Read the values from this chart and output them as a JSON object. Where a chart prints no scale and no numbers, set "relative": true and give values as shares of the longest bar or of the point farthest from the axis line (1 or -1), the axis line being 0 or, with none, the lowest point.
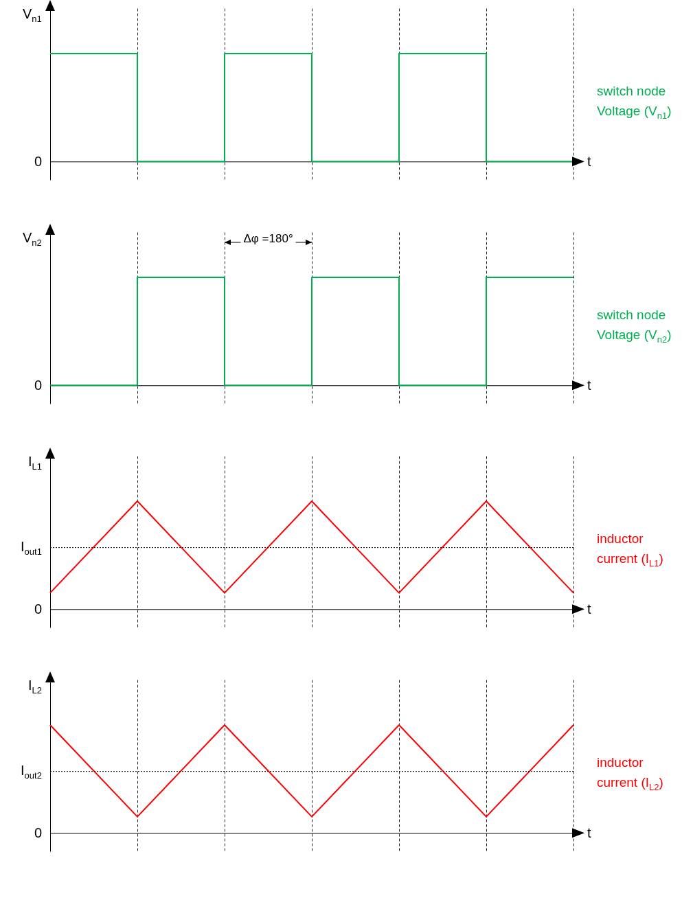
{
  "chart_data": [
    {
      "type": "step",
      "relative": true,
      "grid": "x",
      "ylabel": "V$_{n1}$",
      "xlabel": "t",
      "annotations": [
        "0"
      ],
      "categories": [
        null,
        null,
        null,
        null,
        null,
        null,
        null
      ],
      "series": [
        {
          "name": "switch node Voltage (V$_{n1}$)",
          "color": "#00b050",
          "values": [
            1,
            0,
            1,
            0,
            1,
            0,
            0
          ]
        }
      ]
    },
    {
      "type": "step",
      "relative": true,
      "grid": "x",
      "ylabel": "V$_{n2}$",
      "xlabel": "t",
      "annotations": [
        "0",
        "Δφ =180°"
      ],
      "categories": [
        null,
        null,
        null,
        null,
        null,
        null,
        null
      ],
      "series": [
        {
          "name": "switch node Voltage (V$_{n2}$)",
          "color": "#00b050",
          "values": [
            0,
            1,
            0,
            1,
            0,
            1,
            1
          ]
        }
      ]
    },
    {
      "type": "line",
      "relative": true,
      "grid": "x",
      "ylabel": "I$_{L1}$",
      "xlabel": "t",
      "annotations": [
        "0"
      ],
      "categories": [
        null,
        null,
        null,
        null,
        null,
        null,
        null
      ],
      "series": [
        {
          "name": "inductor current (I$_{L1}$)",
          "color": "#ff0000",
          "values": [
            0.15,
            1,
            0.15,
            1,
            0.15,
            1,
            0.15
          ]
        }
      ],
      "ref_lines": [
        {
          "axis": "y",
          "value": 0.57,
          "label": "I$_{out1}$",
          "line_style": "dotted"
        }
      ]
    },
    {
      "type": "line",
      "relative": true,
      "grid": "x",
      "ylabel": "I$_{L2}$",
      "xlabel": "t",
      "annotations": [
        "0"
      ],
      "categories": [
        null,
        null,
        null,
        null,
        null,
        null,
        null
      ],
      "series": [
        {
          "name": "inductor current (I$_{L2}$)",
          "color": "#ff0000",
          "values": [
            1,
            0.15,
            1,
            0.15,
            1,
            0.15,
            1
          ]
        }
      ],
      "ref_lines": [
        {
          "axis": "y",
          "value": 0.57,
          "label": "I$_{out2}$",
          "line_style": "dotted"
        }
      ]
    }
  ]
}
